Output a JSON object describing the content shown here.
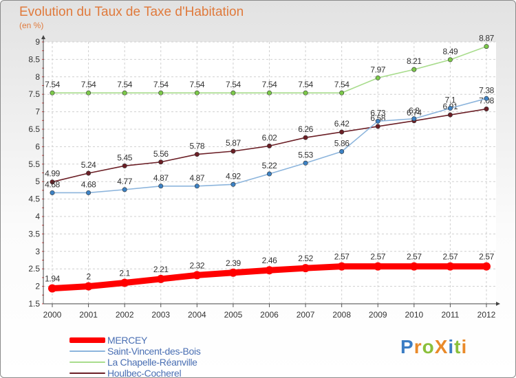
{
  "title": "Evolution du Taux de Taxe d'Habitation",
  "subtitle": "(en %)",
  "logo": {
    "text": "ProXiti",
    "colors": [
      "#3b7dc4",
      "#e98a2a",
      "#8abf3a",
      "#e98a2a",
      "#3b7dc4",
      "#8abf3a",
      "#e98a2a"
    ]
  },
  "chart_data": {
    "type": "line",
    "x": [
      "2000",
      "2001",
      "2002",
      "2003",
      "2004",
      "2005",
      "2006",
      "2007",
      "2008",
      "2009",
      "2010",
      "2011",
      "2012"
    ],
    "ylim": [
      1.5,
      9
    ],
    "yticks": [
      "1.5",
      "2",
      "2.5",
      "3",
      "3.5",
      "4",
      "4.5",
      "5",
      "5.5",
      "6",
      "6.5",
      "7",
      "7.5",
      "8",
      "8.5",
      "9"
    ],
    "grid": true,
    "legend_position": "bottom-left",
    "series": [
      {
        "name": "Houlbec-Cocherel",
        "color": "#6b1f26",
        "marker_color": "#6b1f26",
        "values": [
          4.99,
          5.24,
          5.45,
          5.56,
          5.78,
          5.87,
          6.02,
          6.26,
          6.42,
          6.58,
          6.74,
          6.91,
          7.08
        ],
        "labels": [
          "4.99",
          "5.24",
          "5.45",
          "5.56",
          "5.78",
          "5.87",
          "6.02",
          "6.26",
          "6.42",
          "6.58",
          "6.74",
          "6.91",
          "7.08"
        ]
      },
      {
        "name": "Saint-Vincent-des-Bois",
        "color": "#8bb4dc",
        "marker_color": "#3d82c4",
        "values": [
          4.68,
          4.68,
          4.77,
          4.87,
          4.87,
          4.92,
          5.22,
          5.53,
          5.86,
          6.73,
          6.8,
          7.1,
          7.38
        ],
        "labels": [
          "4.68",
          "4.68",
          "4.77",
          "4.87",
          "4.87",
          "4.92",
          "5.22",
          "5.53",
          "5.86",
          "6.73",
          "6.8",
          "7.1",
          "7.38"
        ]
      },
      {
        "name": "La Chapelle-Réanville",
        "color": "#a8dc8c",
        "marker_color": "#7cc94a",
        "values": [
          7.54,
          7.54,
          7.54,
          7.54,
          7.54,
          7.54,
          7.54,
          7.54,
          7.54,
          7.97,
          8.21,
          8.49,
          8.87
        ],
        "labels": [
          "7.54",
          "7.54",
          "7.54",
          "7.54",
          "7.54",
          "7.54",
          "7.54",
          "7.54",
          "7.54",
          "7.97",
          "8.21",
          "8.49",
          "8.87"
        ]
      },
      {
        "name": "MERCEY",
        "color": "#ff0000",
        "marker_color": "#ff0000",
        "thick": true,
        "values": [
          1.94,
          2,
          2.1,
          2.21,
          2.32,
          2.39,
          2.46,
          2.52,
          2.57,
          2.57,
          2.57,
          2.57,
          2.57
        ],
        "labels": [
          "1.94",
          "2",
          "2.1",
          "2.21",
          "2.32",
          "2.39",
          "2.46",
          "2.52",
          "2.57",
          "2.57",
          "2.57",
          "2.57",
          "2.57"
        ]
      }
    ],
    "legend": [
      {
        "name": "MERCEY",
        "color": "#ff0000",
        "thick": true
      },
      {
        "name": "Saint-Vincent-des-Bois",
        "color": "#8bb4dc"
      },
      {
        "name": "La Chapelle-Réanville",
        "color": "#a8dc8c"
      },
      {
        "name": "Houlbec-Cocherel",
        "color": "#6b1f26"
      }
    ]
  }
}
